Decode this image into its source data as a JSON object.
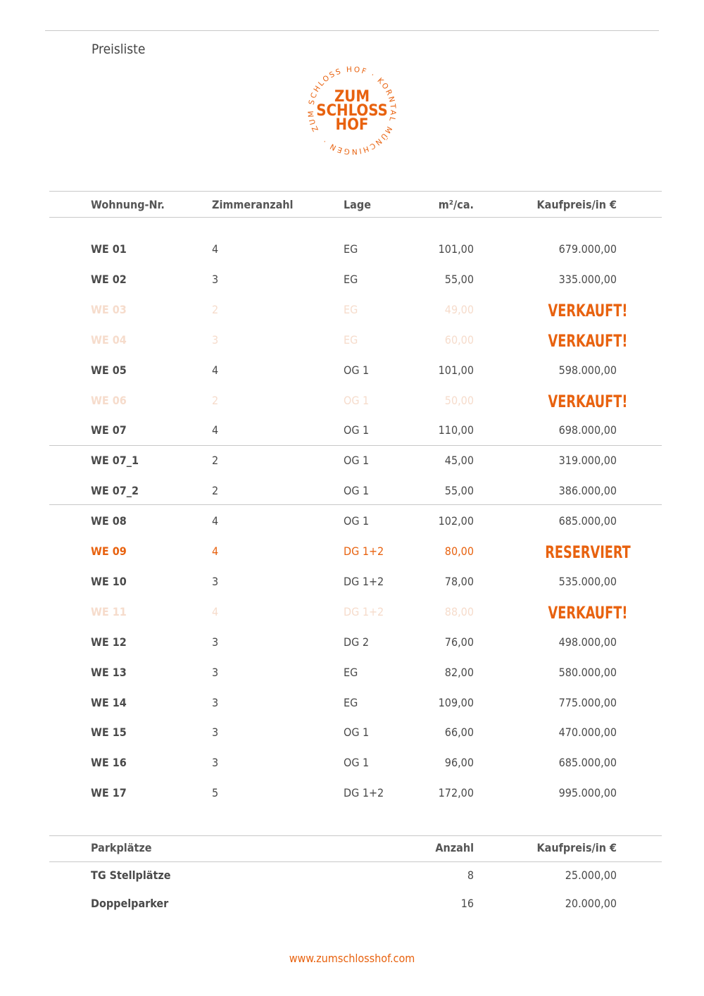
{
  "title": "Preisliste",
  "logo": {
    "center": [
      "ZUM",
      "SCHLOSS",
      "HOF"
    ],
    "ring": "ZUM SCHLOSS HOF · KORNTAL MÜNCHINGEN · "
  },
  "brand_color": "#e8620f",
  "faded_color": "#f6dccc",
  "table": {
    "headers": [
      "Wohnung-Nr.",
      "Zimmeranzahl",
      "Lage",
      "m²/ca.",
      "Kaufpreis/in €"
    ],
    "rows": [
      {
        "nr": "WE 01",
        "rooms": "4",
        "lage": "EG",
        "area": "101,00",
        "price": "679.000,00",
        "status": "available"
      },
      {
        "nr": "WE 02",
        "rooms": "3",
        "lage": "EG",
        "area": "55,00",
        "price": "335.000,00",
        "status": "available"
      },
      {
        "nr": "WE 03",
        "rooms": "2",
        "lage": "EG",
        "area": "49,00",
        "price": "VERKAUFT!",
        "status": "sold"
      },
      {
        "nr": "WE 04",
        "rooms": "3",
        "lage": "EG",
        "area": "60,00",
        "price": "VERKAUFT!",
        "status": "sold"
      },
      {
        "nr": "WE 05",
        "rooms": "4",
        "lage": "OG 1",
        "area": "101,00",
        "price": "598.000,00",
        "status": "available"
      },
      {
        "nr": "WE 06",
        "rooms": "2",
        "lage": "OG 1",
        "area": "50,00",
        "price": "VERKAUFT!",
        "status": "sold"
      },
      {
        "nr": "WE 07",
        "rooms": "4",
        "lage": "OG 1",
        "area": "110,00",
        "price": "698.000,00",
        "status": "available"
      },
      {
        "nr": "WE 07_1",
        "rooms": "2",
        "lage": "OG 1",
        "area": "45,00",
        "price": "319.000,00",
        "status": "available"
      },
      {
        "nr": "WE 07_2",
        "rooms": "2",
        "lage": "OG 1",
        "area": "55,00",
        "price": "386.000,00",
        "status": "available"
      },
      {
        "nr": "WE 08",
        "rooms": "4",
        "lage": "OG 1",
        "area": "102,00",
        "price": "685.000,00",
        "status": "available"
      },
      {
        "nr": "WE 09",
        "rooms": "4",
        "lage": "DG 1+2",
        "area": "80,00",
        "price": "RESERVIERT",
        "status": "reserved"
      },
      {
        "nr": "WE 10",
        "rooms": "3",
        "lage": "DG 1+2",
        "area": "78,00",
        "price": "535.000,00",
        "status": "available"
      },
      {
        "nr": "WE 11",
        "rooms": "4",
        "lage": "DG 1+2",
        "area": "88,00",
        "price": "VERKAUFT!",
        "status": "sold"
      },
      {
        "nr": "WE 12",
        "rooms": "3",
        "lage": "DG 2",
        "area": "76,00",
        "price": "498.000,00",
        "status": "available"
      },
      {
        "nr": "WE 13",
        "rooms": "3",
        "lage": "EG",
        "area": "82,00",
        "price": "580.000,00",
        "status": "available"
      },
      {
        "nr": "WE 14",
        "rooms": "3",
        "lage": "EG",
        "area": "109,00",
        "price": "775.000,00",
        "status": "available"
      },
      {
        "nr": "WE 15",
        "rooms": "3",
        "lage": "OG 1",
        "area": "66,00",
        "price": "470.000,00",
        "status": "available"
      },
      {
        "nr": "WE 16",
        "rooms": "3",
        "lage": "OG 1",
        "area": "96,00",
        "price": "685.000,00",
        "status": "available"
      },
      {
        "nr": "WE 17",
        "rooms": "5",
        "lage": "DG 1+2",
        "area": "172,00",
        "price": "995.000,00",
        "status": "available"
      }
    ]
  },
  "parking": {
    "headers": [
      "Parkplätze",
      "Anzahl",
      "Kaufpreis/in €"
    ],
    "rows": [
      {
        "type": "TG Stellplätze",
        "count": "8",
        "price": "25.000,00"
      },
      {
        "type": "Doppelparker",
        "count": "16",
        "price": "20.000,00"
      }
    ]
  },
  "footer_url": "www.zumschlosshof.com"
}
